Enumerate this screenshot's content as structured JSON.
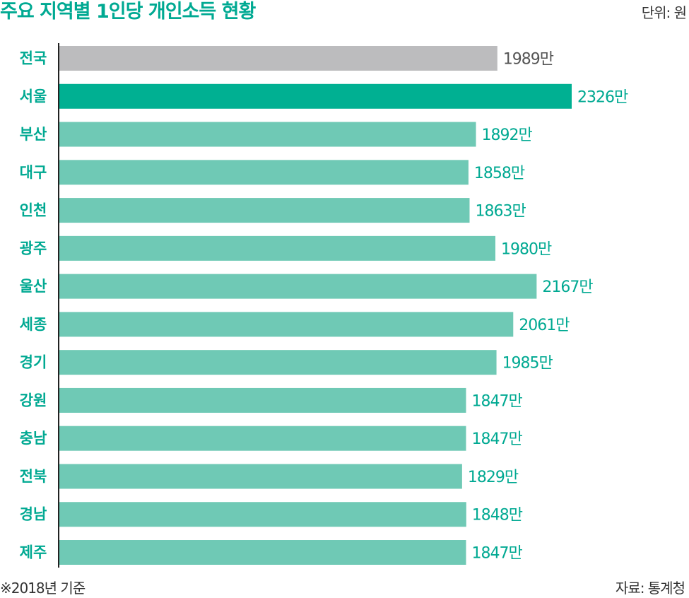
{
  "header": {
    "title": "주요 지역별 1인당 개인소득 현황",
    "unit": "단위: 원"
  },
  "footer": {
    "note": "※2018년 기준",
    "source": "자료: 통계청"
  },
  "colors": {
    "national": "#bcbcbe",
    "highlight": "#00b092",
    "regular": "#6fc9b5",
    "label_gray": "#555555",
    "label_green": "#00a992",
    "axis": "#222222"
  },
  "chart_data": {
    "type": "bar",
    "orientation": "horizontal",
    "title": "주요 지역별 1인당 개인소득 현황",
    "unit": "단위: 원",
    "value_suffix": "만",
    "categories": [
      "전국",
      "서울",
      "부산",
      "대구",
      "인천",
      "광주",
      "울산",
      "세종",
      "경기",
      "강원",
      "충남",
      "전북",
      "경남",
      "제주"
    ],
    "values": [
      1989,
      2326,
      1892,
      1858,
      1863,
      1980,
      2167,
      2061,
      1985,
      1847,
      1847,
      1829,
      1848,
      1847
    ],
    "value_labels": [
      "1989만",
      "2326만",
      "1892만",
      "1858만",
      "1863만",
      "1980만",
      "2167만",
      "2061만",
      "1985만",
      "1847만",
      "1847만",
      "1829만",
      "1848만",
      "1847만"
    ],
    "highlight": "서울",
    "reference": "전국",
    "grid": false,
    "legend": "none"
  }
}
